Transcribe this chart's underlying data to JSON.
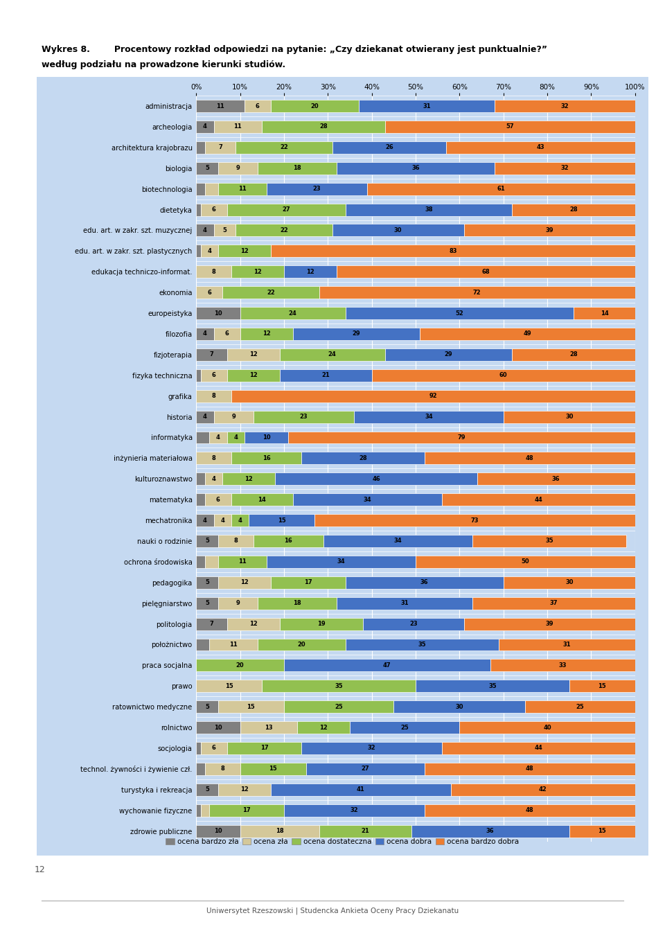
{
  "title_line1": "Wykres 8.        Procentowy rozkład odpowiedzi na pytanie: „Czy dziekanat otwierany jest punktualnie?”",
  "title_line2": "według podziału na prowadzone kierunki studiów.",
  "categories": [
    "administracja",
    "archeologia",
    "architektura krajobrazu",
    "biologia",
    "biotechnologia",
    "dietetyka",
    "edu. art. w zakr. szt. muzycznej",
    "edu. art. w zakr. szt. plastycznych",
    "edukacja techniczo-informat.",
    "ekonomia",
    "europeistyka",
    "filozofia",
    "fizjoterapia",
    "fizyka techniczna",
    "grafika",
    "historia",
    "informatyka",
    "inżynieria materiałowa",
    "kulturoznawstwo",
    "matematyka",
    "mechatronika",
    "nauki o rodzinie",
    "ochrona środowiska",
    "pedagogika",
    "pielęgniarstwo",
    "politologia",
    "położnictwo",
    "praca socjalna",
    "prawo",
    "ratownictwo medyczne",
    "rolnictwo",
    "socjologia",
    "technol. żywności i żywienie czł.",
    "turystyka i rekreacja",
    "wychowanie fizyczne",
    "zdrowie publiczne"
  ],
  "data": [
    [
      11,
      6,
      20,
      31,
      32
    ],
    [
      4,
      11,
      28,
      0,
      57
    ],
    [
      2,
      7,
      22,
      26,
      43
    ],
    [
      5,
      9,
      18,
      36,
      32
    ],
    [
      2,
      3,
      11,
      23,
      61
    ],
    [
      1,
      6,
      27,
      38,
      28
    ],
    [
      4,
      5,
      22,
      30,
      39
    ],
    [
      1,
      4,
      12,
      0,
      83
    ],
    [
      0,
      8,
      12,
      12,
      68
    ],
    [
      0,
      6,
      22,
      0,
      72
    ],
    [
      10,
      0,
      24,
      52,
      14
    ],
    [
      4,
      6,
      12,
      29,
      49
    ],
    [
      7,
      12,
      24,
      29,
      28
    ],
    [
      1,
      6,
      12,
      21,
      60
    ],
    [
      0,
      8,
      0,
      0,
      92
    ],
    [
      4,
      9,
      23,
      34,
      30
    ],
    [
      3,
      4,
      4,
      10,
      79
    ],
    [
      0,
      8,
      16,
      28,
      48
    ],
    [
      2,
      4,
      12,
      46,
      36
    ],
    [
      2,
      6,
      14,
      34,
      44
    ],
    [
      4,
      4,
      4,
      15,
      73
    ],
    [
      5,
      8,
      16,
      34,
      35
    ],
    [
      2,
      3,
      11,
      34,
      50
    ],
    [
      5,
      12,
      17,
      36,
      30
    ],
    [
      5,
      9,
      18,
      31,
      37
    ],
    [
      7,
      12,
      19,
      23,
      39
    ],
    [
      3,
      11,
      20,
      35,
      31
    ],
    [
      0,
      0,
      20,
      47,
      33
    ],
    [
      0,
      15,
      35,
      35,
      15
    ],
    [
      5,
      15,
      25,
      30,
      25
    ],
    [
      10,
      13,
      12,
      25,
      40
    ],
    [
      1,
      6,
      17,
      32,
      44
    ],
    [
      2,
      8,
      15,
      27,
      48
    ],
    [
      5,
      12,
      0,
      41,
      42
    ],
    [
      1,
      2,
      17,
      32,
      48
    ],
    [
      10,
      18,
      21,
      36,
      15
    ]
  ],
  "colors": [
    "#808080",
    "#d4c89a",
    "#92c050",
    "#4472c4",
    "#ed7d31"
  ],
  "legend_labels": [
    "ocena bardzo zła",
    "ocena zła",
    "ocena dostateczna",
    "ocena dobra",
    "ocena bardzo dobra"
  ],
  "bg_color": "#dce6f1",
  "panel_color": "#c5d9f1",
  "footer": "Uniwersytet Rzeszowski | Studencka Ankieta Oceny Pracy Dziekanatu",
  "page_number": "12"
}
